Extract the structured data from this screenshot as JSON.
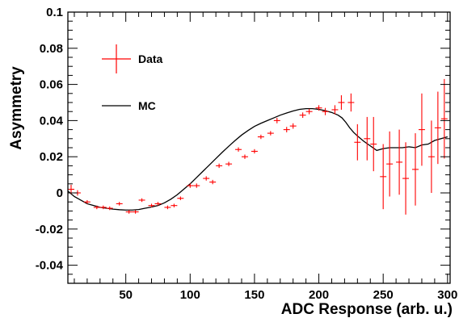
{
  "chart_data": {
    "type": "scatter",
    "title": "",
    "xlabel": "ADC Response (arb. u.)",
    "ylabel": "Asymmetry",
    "xlim": [
      5,
      302
    ],
    "ylim": [
      -0.05,
      0.1
    ],
    "x_ticks": [
      50,
      100,
      150,
      200,
      250,
      300
    ],
    "x_tick_labels": [
      "50",
      "100",
      "150",
      "200",
      "250",
      "300"
    ],
    "y_ticks": [
      -0.04,
      -0.02,
      0,
      0.02,
      0.04,
      0.06,
      0.08,
      0.1
    ],
    "y_tick_labels": [
      "-0.04",
      "-0.02",
      "0",
      "0.02",
      "0.04",
      "0.06",
      "0.08",
      "0.1"
    ],
    "legend": {
      "position": "top-left",
      "entries": [
        {
          "name": "Data",
          "style": "error-cross",
          "color": "#ff0000"
        },
        {
          "name": "MC",
          "style": "line",
          "color": "#000000"
        }
      ]
    },
    "series": [
      {
        "name": "Data",
        "kind": "points-with-errors",
        "color": "#ff0000",
        "points": [
          {
            "x": 7.5,
            "y": 0.002,
            "xerr": 2.5,
            "yerr": 0.0025
          },
          {
            "x": 12.5,
            "y": 0.0,
            "xerr": 2.5,
            "yerr": 0.0015
          },
          {
            "x": 20,
            "y": -0.005,
            "xerr": 2.5,
            "yerr": 0.001
          },
          {
            "x": 27.5,
            "y": -0.008,
            "xerr": 2.5,
            "yerr": 0.001
          },
          {
            "x": 32.5,
            "y": -0.008,
            "xerr": 2.5,
            "yerr": 0.001
          },
          {
            "x": 37.5,
            "y": -0.0085,
            "xerr": 2.5,
            "yerr": 0.001
          },
          {
            "x": 45,
            "y": -0.006,
            "xerr": 2.5,
            "yerr": 0.001
          },
          {
            "x": 52.5,
            "y": -0.0105,
            "xerr": 2.5,
            "yerr": 0.001
          },
          {
            "x": 57.5,
            "y": -0.0105,
            "xerr": 2.5,
            "yerr": 0.001
          },
          {
            "x": 62.5,
            "y": -0.004,
            "xerr": 2.5,
            "yerr": 0.001
          },
          {
            "x": 70,
            "y": -0.007,
            "xerr": 2.5,
            "yerr": 0.001
          },
          {
            "x": 75,
            "y": -0.006,
            "xerr": 2.5,
            "yerr": 0.001
          },
          {
            "x": 82.5,
            "y": -0.008,
            "xerr": 2.5,
            "yerr": 0.001
          },
          {
            "x": 87.5,
            "y": -0.007,
            "xerr": 2.5,
            "yerr": 0.001
          },
          {
            "x": 92.5,
            "y": -0.003,
            "xerr": 2.5,
            "yerr": 0.001
          },
          {
            "x": 100,
            "y": 0.004,
            "xerr": 2.5,
            "yerr": 0.0012
          },
          {
            "x": 105,
            "y": 0.004,
            "xerr": 2.5,
            "yerr": 0.0012
          },
          {
            "x": 112.5,
            "y": 0.008,
            "xerr": 2.5,
            "yerr": 0.0012
          },
          {
            "x": 117.5,
            "y": 0.006,
            "xerr": 2.5,
            "yerr": 0.0012
          },
          {
            "x": 122.5,
            "y": 0.015,
            "xerr": 2.5,
            "yerr": 0.0012
          },
          {
            "x": 130,
            "y": 0.016,
            "xerr": 2.5,
            "yerr": 0.0012
          },
          {
            "x": 137.5,
            "y": 0.024,
            "xerr": 2.5,
            "yerr": 0.0012
          },
          {
            "x": 142.5,
            "y": 0.02,
            "xerr": 2.5,
            "yerr": 0.0012
          },
          {
            "x": 150,
            "y": 0.023,
            "xerr": 2.5,
            "yerr": 0.0012
          },
          {
            "x": 155,
            "y": 0.031,
            "xerr": 2.5,
            "yerr": 0.0012
          },
          {
            "x": 162.5,
            "y": 0.033,
            "xerr": 2.5,
            "yerr": 0.0012
          },
          {
            "x": 167.5,
            "y": 0.04,
            "xerr": 2.5,
            "yerr": 0.0015
          },
          {
            "x": 175,
            "y": 0.035,
            "xerr": 2.5,
            "yerr": 0.0015
          },
          {
            "x": 180,
            "y": 0.037,
            "xerr": 2.5,
            "yerr": 0.0015
          },
          {
            "x": 187.5,
            "y": 0.043,
            "xerr": 2.5,
            "yerr": 0.0015
          },
          {
            "x": 192.5,
            "y": 0.045,
            "xerr": 2.5,
            "yerr": 0.0015
          },
          {
            "x": 200,
            "y": 0.047,
            "xerr": 2.5,
            "yerr": 0.0015
          },
          {
            "x": 205,
            "y": 0.045,
            "xerr": 2.5,
            "yerr": 0.002
          },
          {
            "x": 212.5,
            "y": 0.046,
            "xerr": 2.5,
            "yerr": 0.0025
          },
          {
            "x": 217.5,
            "y": 0.05,
            "xerr": 2.5,
            "yerr": 0.004
          },
          {
            "x": 225,
            "y": 0.05,
            "xerr": 2.5,
            "yerr": 0.005
          },
          {
            "x": 230,
            "y": 0.028,
            "xerr": 2.5,
            "yerr": 0.01
          },
          {
            "x": 237.5,
            "y": 0.03,
            "xerr": 2.5,
            "yerr": 0.012
          },
          {
            "x": 242.5,
            "y": 0.027,
            "xerr": 2.5,
            "yerr": 0.015
          },
          {
            "x": 250,
            "y": 0.009,
            "xerr": 2.5,
            "yerr": 0.018
          },
          {
            "x": 255,
            "y": 0.016,
            "xerr": 2.5,
            "yerr": 0.018
          },
          {
            "x": 262.5,
            "y": 0.017,
            "xerr": 2.5,
            "yerr": 0.018
          },
          {
            "x": 267.5,
            "y": 0.008,
            "xerr": 2.5,
            "yerr": 0.02
          },
          {
            "x": 275,
            "y": 0.013,
            "xerr": 2.5,
            "yerr": 0.02
          },
          {
            "x": 280,
            "y": 0.035,
            "xerr": 2.5,
            "yerr": 0.02
          },
          {
            "x": 287.5,
            "y": 0.02,
            "xerr": 2.5,
            "yerr": 0.02
          },
          {
            "x": 292.5,
            "y": 0.036,
            "xerr": 2.5,
            "yerr": 0.02
          },
          {
            "x": 297.5,
            "y": 0.041,
            "xerr": 2.5,
            "yerr": 0.022
          }
        ]
      },
      {
        "name": "MC",
        "kind": "line",
        "color": "#000000",
        "x": [
          5,
          10,
          15,
          20,
          25,
          30,
          35,
          40,
          45,
          50,
          55,
          60,
          65,
          70,
          75,
          80,
          85,
          90,
          95,
          100,
          105,
          110,
          115,
          120,
          125,
          130,
          135,
          140,
          145,
          150,
          155,
          160,
          165,
          170,
          175,
          180,
          185,
          190,
          195,
          200,
          205,
          210,
          215,
          218,
          221,
          224,
          227,
          230,
          235,
          240,
          245,
          250,
          255,
          260,
          265,
          270,
          275,
          280,
          285,
          290,
          295,
          300
        ],
        "y": [
          0.001,
          -0.002,
          -0.004,
          -0.006,
          -0.007,
          -0.008,
          -0.0085,
          -0.009,
          -0.0093,
          -0.0095,
          -0.0095,
          -0.0092,
          -0.0085,
          -0.0078,
          -0.007,
          -0.0055,
          -0.0035,
          -0.001,
          0.002,
          0.005,
          0.0085,
          0.012,
          0.0155,
          0.019,
          0.0225,
          0.0258,
          0.029,
          0.032,
          0.0345,
          0.0368,
          0.0385,
          0.04,
          0.0415,
          0.043,
          0.0442,
          0.0453,
          0.0462,
          0.0466,
          0.0466,
          0.0462,
          0.0455,
          0.0445,
          0.043,
          0.0415,
          0.039,
          0.036,
          0.0335,
          0.0315,
          0.0285,
          0.026,
          0.0235,
          0.0245,
          0.025,
          0.025,
          0.025,
          0.0255,
          0.025,
          0.0265,
          0.027,
          0.029,
          0.03,
          0.031
        ]
      }
    ]
  }
}
